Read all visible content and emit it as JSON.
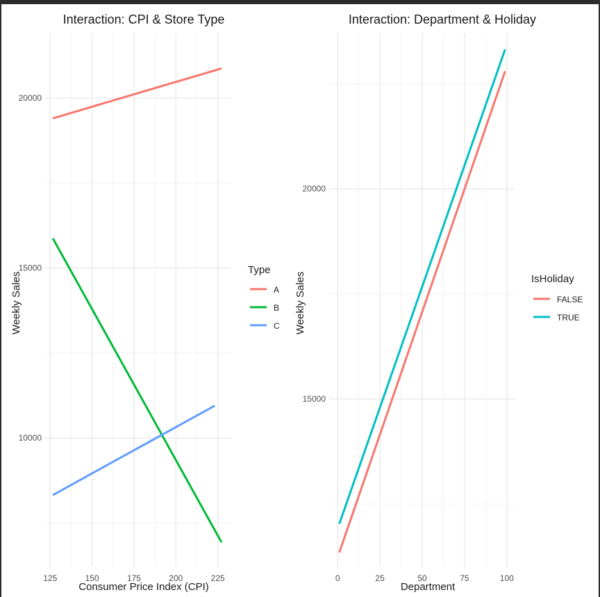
{
  "chart_data": [
    {
      "type": "line",
      "title": "Interaction: CPI & Store Type",
      "xlabel": "Consumer Price Index (CPI)",
      "ylabel": "Weekly Sales",
      "xlim": [
        122,
        233
      ],
      "ylim": [
        6200,
        21900
      ],
      "xticks": [
        125,
        150,
        175,
        200,
        225
      ],
      "yticks": [
        10000,
        15000,
        20000
      ],
      "grid": true,
      "legend": {
        "title": "Type",
        "position": "right"
      },
      "series": [
        {
          "name": "A",
          "color": "#F8766D",
          "x": [
            126.6,
            227.2
          ],
          "y": [
            19400,
            20870
          ]
        },
        {
          "name": "B",
          "color": "#00BA38",
          "x": [
            126.6,
            227.2
          ],
          "y": [
            15870,
            6930
          ]
        },
        {
          "name": "C",
          "color": "#619CFF",
          "x": [
            126.6,
            223.2
          ],
          "y": [
            8320,
            10950
          ]
        }
      ]
    },
    {
      "type": "line",
      "title": "Interaction: Department & Holiday",
      "xlabel": "Department",
      "ylabel": "Weekly Sales",
      "xlim": [
        -5,
        105
      ],
      "ylim": [
        11000,
        23700
      ],
      "xticks": [
        0,
        25,
        50,
        75,
        100
      ],
      "yticks": [
        15000,
        20000
      ],
      "grid": true,
      "legend": {
        "title": "IsHoliday",
        "position": "right"
      },
      "series": [
        {
          "name": "FALSE",
          "color": "#F8766D",
          "x": [
            1,
            99
          ],
          "y": [
            11350,
            22800
          ]
        },
        {
          "name": "TRUE",
          "color": "#00BFC4",
          "x": [
            1,
            99
          ],
          "y": [
            12030,
            23320
          ]
        }
      ]
    }
  ]
}
